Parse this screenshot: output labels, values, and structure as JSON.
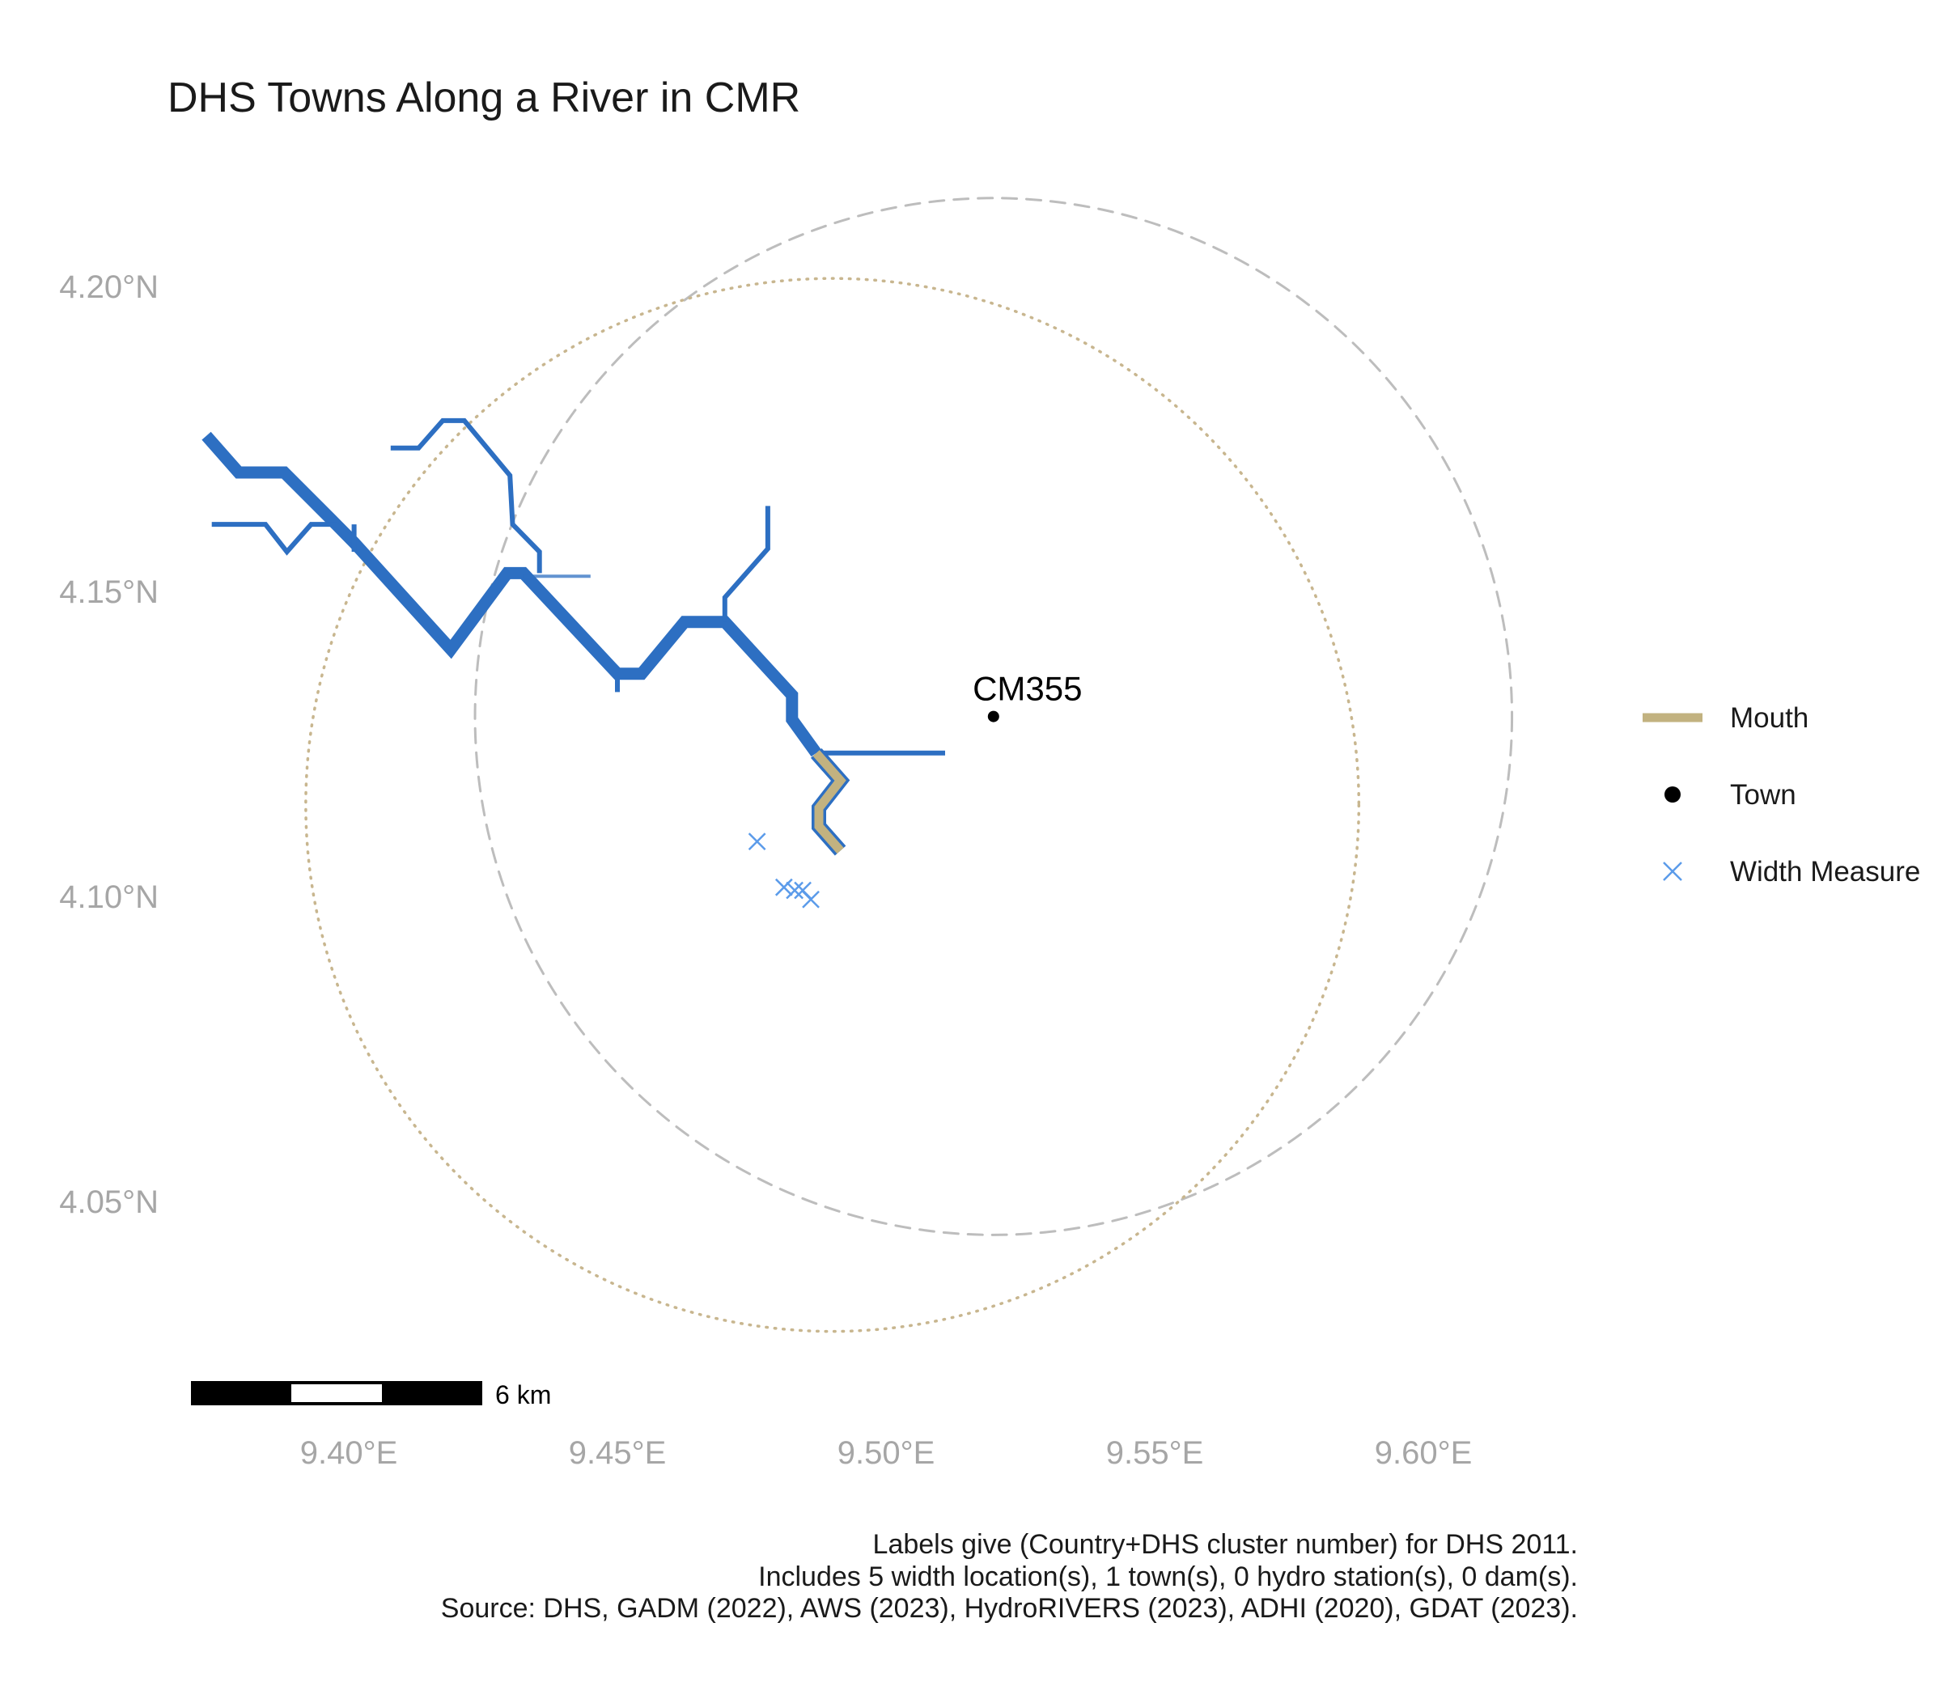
{
  "title": "DHS Towns Along a River in CMR",
  "chart_data": {
    "type": "map",
    "title": "DHS Towns Along a River in CMR",
    "xlim": [
      9.37,
      9.62
    ],
    "ylim": [
      4.02,
      4.22
    ],
    "x_ticks": [
      {
        "value": 9.4,
        "label": "9.40°E"
      },
      {
        "value": 9.45,
        "label": "9.45°E"
      },
      {
        "value": 9.5,
        "label": "9.50°E"
      },
      {
        "value": 9.55,
        "label": "9.55°E"
      },
      {
        "value": 9.6,
        "label": "9.60°E"
      }
    ],
    "y_ticks": [
      {
        "value": 4.2,
        "label": "4.20°N"
      },
      {
        "value": 4.15,
        "label": "4.15°N"
      },
      {
        "value": 4.1,
        "label": "4.10°N"
      },
      {
        "value": 4.05,
        "label": "4.05°N"
      }
    ],
    "grid": false,
    "legend_position": "right",
    "legend": [
      {
        "key": "mouth",
        "label": "Mouth",
        "symbol": "line",
        "color": "#c2b280"
      },
      {
        "key": "town",
        "label": "Town",
        "symbol": "point",
        "color": "#000000"
      },
      {
        "key": "width",
        "label": "Width Measure",
        "symbol": "cross",
        "color": "#5b9bea"
      }
    ],
    "colors": {
      "river": "#2d6fc2",
      "mouth": "#c2b280",
      "town": "#000000",
      "width_measure": "#5b9bea",
      "dashed_circle": "#bdbdbd",
      "dotted_circle": "#c8b68f"
    },
    "rivers": [
      {
        "weight": 3,
        "coords": [
          [
            9.3735,
            4.1755
          ],
          [
            9.3795,
            4.1695
          ],
          [
            9.388,
            4.1695
          ],
          [
            9.3965,
            4.162
          ],
          [
            9.401,
            4.158
          ],
          [
            9.419,
            4.1405
          ],
          [
            9.4295,
            4.153
          ],
          [
            9.4325,
            4.153
          ],
          [
            9.45,
            4.1365
          ],
          [
            9.4545,
            4.1365
          ],
          [
            9.4625,
            4.145
          ],
          [
            9.47,
            4.145
          ],
          [
            9.4825,
            4.133
          ],
          [
            9.4825,
            4.129
          ],
          [
            9.487,
            4.1235
          ]
        ]
      },
      {
        "weight": 1,
        "coords": [
          [
            9.3745,
            4.161
          ],
          [
            9.3845,
            4.161
          ],
          [
            9.3885,
            4.1565
          ],
          [
            9.393,
            4.161
          ],
          [
            9.3975,
            4.161
          ],
          [
            9.401,
            4.158
          ]
        ]
      },
      {
        "weight": 1,
        "coords": [
          [
            9.401,
            4.161
          ],
          [
            9.401,
            4.1565
          ]
        ]
      },
      {
        "weight": 1,
        "coords": [
          [
            9.4078,
            4.1735
          ],
          [
            9.413,
            4.1735
          ],
          [
            9.4175,
            4.178
          ],
          [
            9.4215,
            4.178
          ],
          [
            9.43,
            4.169
          ],
          [
            9.4305,
            4.161
          ],
          [
            9.4355,
            4.1565
          ],
          [
            9.4355,
            4.153
          ]
        ]
      },
      {
        "weight": 0.6,
        "coords": [
          [
            9.4325,
            4.1525
          ],
          [
            9.445,
            4.1525
          ]
        ]
      },
      {
        "weight": 1,
        "coords": [
          [
            9.45,
            4.137
          ],
          [
            9.45,
            4.1335
          ]
        ]
      },
      {
        "weight": 1,
        "coords": [
          [
            9.47,
            4.145
          ],
          [
            9.47,
            4.149
          ],
          [
            9.478,
            4.157
          ],
          [
            9.478,
            4.164
          ]
        ]
      },
      {
        "weight": 1,
        "coords": [
          [
            9.487,
            4.1235
          ],
          [
            9.511,
            4.1235
          ]
        ]
      }
    ],
    "mouth": {
      "coords": [
        [
          9.487,
          4.1235
        ],
        [
          9.4915,
          4.119
        ],
        [
          9.4875,
          4.1145
        ],
        [
          9.4875,
          4.1115
        ],
        [
          9.4915,
          4.1075
        ]
      ]
    },
    "towns": [
      {
        "id": "CM355",
        "label": "CM355",
        "lon": 9.52,
        "lat": 4.1295
      }
    ],
    "width_measures": [
      {
        "lon": 9.476,
        "lat": 4.109
      },
      {
        "lon": 9.481,
        "lat": 4.1015
      },
      {
        "lon": 9.483,
        "lat": 4.101
      },
      {
        "lon": 9.4845,
        "lat": 4.101
      },
      {
        "lon": 9.486,
        "lat": 4.0995
      }
    ],
    "circles": [
      {
        "style": "dashed",
        "center_lon": 9.52,
        "center_lat": 4.1295,
        "radius_deg": 0.0965
      },
      {
        "style": "dotted",
        "center_lon": 9.49,
        "center_lat": 4.115,
        "radius_deg": 0.098
      }
    ],
    "scale_bar": {
      "label": "6 km",
      "km": 6,
      "start_lon": 9.3725,
      "lat": 4.021,
      "segments": 3
    }
  },
  "caption": {
    "lines": [
      "Labels give (Country+DHS cluster number) for DHS 2011.",
      "Includes 5 width location(s), 1 town(s), 0 hydro station(s), 0 dam(s).",
      "Source: DHS, GADM (2022), AWS (2023), HydroRIVERS (2023), ADHI (2020), GDAT (2023)."
    ]
  }
}
